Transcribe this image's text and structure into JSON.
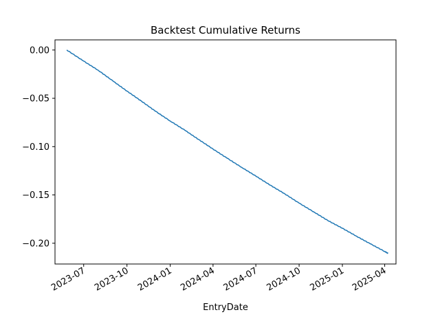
{
  "chart_data": {
    "type": "line",
    "title": "Backtest Cumulative Returns",
    "xlabel": "EntryDate",
    "ylabel": "",
    "x_range": [
      "2023-05-01",
      "2025-04-25"
    ],
    "ylim": [
      -0.2215,
      0.0105
    ],
    "grid": false,
    "legend": "none",
    "x_ticks": [
      {
        "date": "2023-07-01",
        "label": "2023-07"
      },
      {
        "date": "2023-10-01",
        "label": "2023-10"
      },
      {
        "date": "2024-01-01",
        "label": "2024-01"
      },
      {
        "date": "2024-04-01",
        "label": "2024-04"
      },
      {
        "date": "2024-07-01",
        "label": "2024-07"
      },
      {
        "date": "2024-10-01",
        "label": "2024-10"
      },
      {
        "date": "2025-01-01",
        "label": "2025-01"
      },
      {
        "date": "2025-04-01",
        "label": "2025-04"
      }
    ],
    "y_ticks": [
      {
        "value": 0.0,
        "label": "0.00"
      },
      {
        "value": -0.05,
        "label": "−0.05"
      },
      {
        "value": -0.1,
        "label": "−0.10"
      },
      {
        "value": -0.15,
        "label": "−0.15"
      },
      {
        "value": -0.2,
        "label": "−0.20"
      }
    ],
    "series": [
      {
        "color": "#1f77b4",
        "x": [
          "2023-05-26",
          "2023-07-01",
          "2023-08-01",
          "2023-09-01",
          "2023-10-01",
          "2023-11-01",
          "2023-12-01",
          "2024-01-01",
          "2024-02-01",
          "2024-03-01",
          "2024-04-01",
          "2024-05-01",
          "2024-06-01",
          "2024-07-01",
          "2024-08-01",
          "2024-09-01",
          "2024-10-01",
          "2024-11-01",
          "2024-12-01",
          "2025-01-01",
          "2025-02-01",
          "2025-03-01",
          "2025-04-01",
          "2025-04-08"
        ],
        "y": [
          0.0,
          -0.0115,
          -0.021,
          -0.032,
          -0.0425,
          -0.053,
          -0.0635,
          -0.0735,
          -0.083,
          -0.0925,
          -0.1025,
          -0.112,
          -0.1215,
          -0.1305,
          -0.14,
          -0.149,
          -0.1585,
          -0.1675,
          -0.1765,
          -0.1845,
          -0.193,
          -0.2005,
          -0.2085,
          -0.2105
        ]
      }
    ]
  }
}
